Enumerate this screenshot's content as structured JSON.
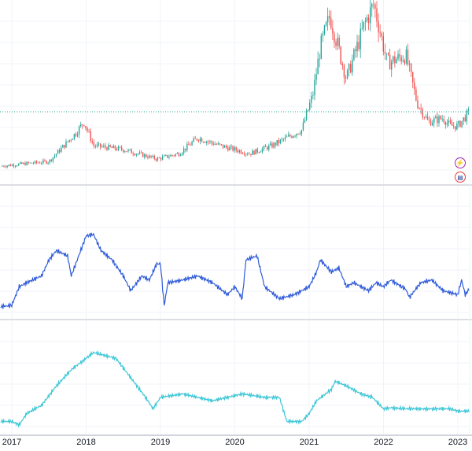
{
  "chart_data": [
    {
      "type": "candlestick",
      "name": "price",
      "ylim": [
        0,
        100
      ],
      "last_value": 33.5,
      "points": [
        [
          2016.85,
          0.5
        ],
        [
          2017.5,
          3.3
        ],
        [
          2017.85,
          20
        ],
        [
          2017.97,
          27.3
        ],
        [
          2018.1,
          12.9
        ],
        [
          2018.5,
          10.5
        ],
        [
          2018.95,
          4.8
        ],
        [
          2019.25,
          8.1
        ],
        [
          2019.5,
          17.7
        ],
        [
          2019.8,
          12.9
        ],
        [
          2020.2,
          8.1
        ],
        [
          2020.5,
          12.9
        ],
        [
          2020.9,
          22.5
        ],
        [
          2021.05,
          44
        ],
        [
          2021.15,
          72.7
        ],
        [
          2021.28,
          91.9
        ],
        [
          2021.5,
          53.6
        ],
        [
          2021.75,
          87.1
        ],
        [
          2021.87,
          99
        ],
        [
          2022.05,
          63.2
        ],
        [
          2022.3,
          67.9
        ],
        [
          2022.45,
          39.2
        ],
        [
          2022.6,
          27.3
        ],
        [
          2022.8,
          29.7
        ],
        [
          2022.9,
          24.9
        ],
        [
          2023.0,
          24.9
        ],
        [
          2023.15,
          33
        ]
      ]
    },
    {
      "type": "line",
      "name": "indicator-1",
      "ylim": [
        0,
        100
      ],
      "color": "#2f5bd9",
      "points": [
        [
          2016.85,
          9
        ],
        [
          2017.0,
          10
        ],
        [
          2017.1,
          24
        ],
        [
          2017.2,
          27
        ],
        [
          2017.4,
          32
        ],
        [
          2017.5,
          44
        ],
        [
          2017.6,
          51
        ],
        [
          2017.75,
          47
        ],
        [
          2017.8,
          32
        ],
        [
          2017.9,
          47
        ],
        [
          2018.0,
          62
        ],
        [
          2018.1,
          63
        ],
        [
          2018.2,
          51
        ],
        [
          2018.35,
          44
        ],
        [
          2018.5,
          32
        ],
        [
          2018.6,
          21
        ],
        [
          2018.75,
          32
        ],
        [
          2018.85,
          29
        ],
        [
          2018.95,
          41
        ],
        [
          2019.0,
          41
        ],
        [
          2019.05,
          10
        ],
        [
          2019.1,
          27
        ],
        [
          2019.3,
          29
        ],
        [
          2019.5,
          32
        ],
        [
          2019.7,
          27
        ],
        [
          2019.9,
          18
        ],
        [
          2020.0,
          24
        ],
        [
          2020.1,
          15
        ],
        [
          2020.15,
          44
        ],
        [
          2020.3,
          47
        ],
        [
          2020.4,
          24
        ],
        [
          2020.6,
          15
        ],
        [
          2020.8,
          18
        ],
        [
          2021.0,
          24
        ],
        [
          2021.1,
          35
        ],
        [
          2021.15,
          44
        ],
        [
          2021.3,
          35
        ],
        [
          2021.4,
          38
        ],
        [
          2021.5,
          24
        ],
        [
          2021.6,
          27
        ],
        [
          2021.8,
          21
        ],
        [
          2021.9,
          27
        ],
        [
          2022.0,
          24
        ],
        [
          2022.1,
          29
        ],
        [
          2022.3,
          22
        ],
        [
          2022.35,
          16
        ],
        [
          2022.5,
          27
        ],
        [
          2022.65,
          29
        ],
        [
          2022.8,
          21
        ],
        [
          2023.0,
          18
        ],
        [
          2023.05,
          29
        ],
        [
          2023.1,
          18
        ],
        [
          2023.15,
          22
        ]
      ]
    },
    {
      "type": "line",
      "name": "indicator-2",
      "ylim": [
        0,
        100
      ],
      "color": "#3cc6d6",
      "points": [
        [
          2016.85,
          12
        ],
        [
          2017.0,
          12
        ],
        [
          2017.1,
          9
        ],
        [
          2017.2,
          19
        ],
        [
          2017.4,
          26
        ],
        [
          2017.6,
          43
        ],
        [
          2017.8,
          57
        ],
        [
          2018.0,
          67
        ],
        [
          2018.1,
          72
        ],
        [
          2018.4,
          67
        ],
        [
          2018.6,
          50
        ],
        [
          2018.8,
          33
        ],
        [
          2018.9,
          23
        ],
        [
          2019.0,
          33
        ],
        [
          2019.3,
          36
        ],
        [
          2019.5,
          33
        ],
        [
          2019.7,
          30
        ],
        [
          2019.9,
          33
        ],
        [
          2020.1,
          36
        ],
        [
          2020.4,
          33
        ],
        [
          2020.6,
          33
        ],
        [
          2020.7,
          12
        ],
        [
          2020.9,
          12
        ],
        [
          2021.0,
          19
        ],
        [
          2021.1,
          30
        ],
        [
          2021.3,
          40
        ],
        [
          2021.35,
          47
        ],
        [
          2021.5,
          43
        ],
        [
          2021.7,
          36
        ],
        [
          2021.85,
          33
        ],
        [
          2022.0,
          23
        ],
        [
          2022.1,
          24
        ],
        [
          2022.3,
          23
        ],
        [
          2022.5,
          23
        ],
        [
          2022.7,
          23
        ],
        [
          2022.9,
          23
        ],
        [
          2023.0,
          21
        ],
        [
          2023.15,
          21
        ]
      ]
    }
  ],
  "x_axis": {
    "labels": [
      "2017",
      "2018",
      "2019",
      "2020",
      "2021",
      "2022",
      "2023"
    ]
  },
  "badges": {
    "events": "⚡",
    "flag": "US"
  },
  "colors": {
    "up": "#26a69a",
    "down": "#ef5350",
    "grid": "#f0f3fa",
    "separator": "#d1d4dc"
  }
}
